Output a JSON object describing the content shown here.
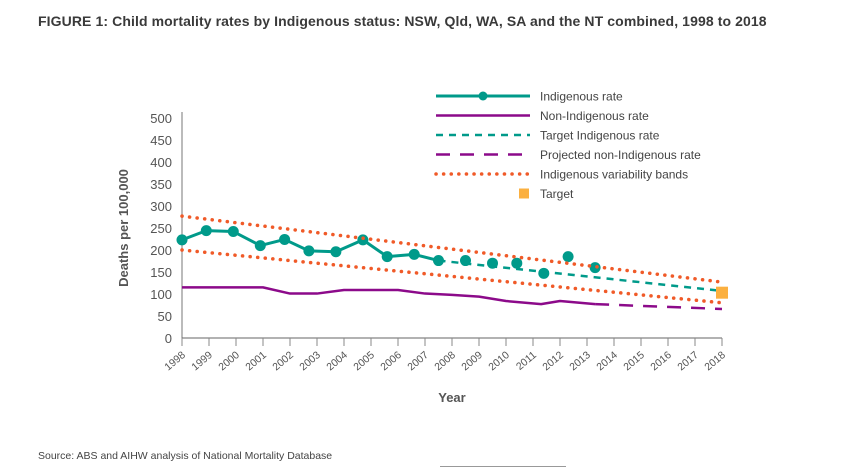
{
  "title": "FIGURE 1: Child mortality rates by Indigenous status: NSW, Qld, WA, SA and the NT combined, 1998 to 2018",
  "source": "Source: ABS and AIHW analysis of National Mortality Database",
  "chart_data": {
    "type": "line",
    "xlabel": "Year",
    "ylabel": "Deaths per 100,000",
    "xlim": [
      1998,
      2018
    ],
    "ylim": [
      0,
      500
    ],
    "x_ticks": [
      "1998",
      "1999",
      "2000",
      "2001",
      "2002",
      "2003",
      "2004",
      "2005",
      "2006",
      "2007",
      "2008",
      "2009",
      "2010",
      "2011",
      "2012",
      "2013",
      "2014",
      "2015",
      "2016",
      "2017",
      "2018"
    ],
    "y_ticks": [
      "0",
      "50",
      "100",
      "150",
      "200",
      "250",
      "300",
      "350",
      "400",
      "450",
      "500"
    ],
    "grid": false,
    "legend_position": "top-right",
    "colors": {
      "indigenous": "#009a8a",
      "non_indigenous": "#8c0a8a",
      "bands": "#f05a28",
      "target": "#fbb040"
    },
    "series": [
      {
        "name": "Indigenous rate",
        "style": "solid-markers",
        "x": [
          1998.0,
          1998.9,
          1999.9,
          2000.9,
          2001.8,
          2002.7,
          2003.7,
          2004.7,
          2005.6,
          2006.6,
          2007.5
        ],
        "y": [
          223,
          244,
          242,
          210,
          224,
          198,
          196,
          223,
          185,
          190,
          176
        ]
      },
      {
        "name": "Indigenous rate",
        "style": "markers-only",
        "x": [
          2008.5,
          2009.5,
          2010.4,
          2011.4,
          2012.3,
          2013.3
        ],
        "y": [
          176,
          170,
          170,
          147,
          185,
          160
        ]
      },
      {
        "name": "Non-Indigenous rate",
        "style": "solid",
        "x": [
          1998,
          2001,
          2002,
          2003,
          2004,
          2005,
          2006,
          2007,
          2008,
          2009,
          2010,
          2011.3,
          2012,
          2013.3
        ],
        "y": [
          115,
          115,
          101,
          101,
          109,
          109,
          109,
          101,
          98,
          94,
          84,
          77,
          84,
          77
        ]
      },
      {
        "name": "Target Indigenous rate",
        "style": "dashed",
        "x": [
          2007.5,
          2018
        ],
        "y": [
          176,
          107
        ]
      },
      {
        "name": "Projected non-Indigenous rate",
        "style": "long-dashed",
        "x": [
          2013.3,
          2018
        ],
        "y": [
          77,
          66
        ]
      },
      {
        "name": "Indigenous variability bands",
        "style": "dotted",
        "x": [
          1998,
          2018
        ],
        "y": [
          277,
          127
        ]
      },
      {
        "name": "Indigenous variability bands",
        "style": "dotted",
        "x": [
          1998,
          2018
        ],
        "y": [
          200,
          80
        ]
      },
      {
        "name": "Target",
        "style": "square",
        "x": [
          2018
        ],
        "y": [
          103
        ]
      }
    ],
    "legend": [
      "Indigenous rate",
      "Non-Indigenous rate",
      "Target Indigenous rate",
      "Projected non-Indigenous rate",
      "Indigenous variability bands",
      "Target"
    ]
  }
}
